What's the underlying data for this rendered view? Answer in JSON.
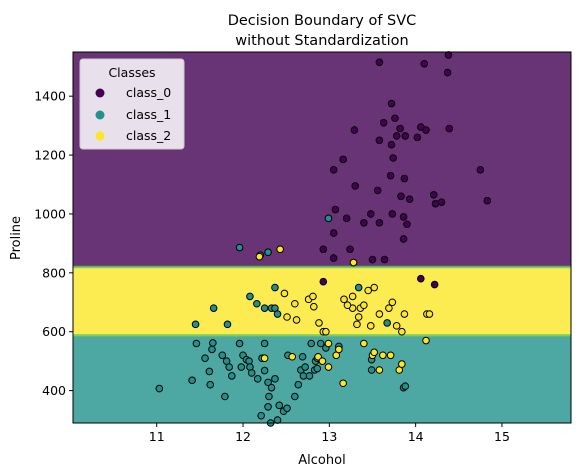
{
  "chart_data": {
    "type": "scatter",
    "title": [
      "Decision Boundary of SVC",
      "without Standardization"
    ],
    "xlabel": "Alcohol",
    "ylabel": "Proline",
    "xlim": [
      10.03,
      15.8
    ],
    "ylim": [
      290,
      1550
    ],
    "xticks": [
      11,
      12,
      13,
      14,
      15
    ],
    "yticks": [
      400,
      600,
      800,
      1000,
      1200,
      1400
    ],
    "grid": false,
    "legend": {
      "title": "Classes",
      "placement": "top-left"
    },
    "regions": [
      {
        "class": "class_1",
        "from": 290,
        "to": 588,
        "color": "#21918c"
      },
      {
        "class": "class_2",
        "from": 588,
        "to": 820,
        "color": "#fde725"
      },
      {
        "class": "class_0",
        "from": 820,
        "to": 1550,
        "color": "#440154"
      }
    ],
    "series": [
      {
        "name": "class_0",
        "color": "#440154",
        "points": [
          [
            14.38,
            1540
          ],
          [
            13.58,
            1515
          ],
          [
            14.1,
            1510
          ],
          [
            14.37,
            1480
          ],
          [
            13.72,
            1375
          ],
          [
            13.76,
            1325
          ],
          [
            13.63,
            1310
          ],
          [
            13.82,
            1290
          ],
          [
            14.06,
            1295
          ],
          [
            14.39,
            1290
          ],
          [
            13.29,
            1285
          ],
          [
            14.12,
            1285
          ],
          [
            13.78,
            1265
          ],
          [
            13.88,
            1265
          ],
          [
            14.02,
            1260
          ],
          [
            13.58,
            1250
          ],
          [
            13.72,
            1235
          ],
          [
            13.74,
            1190
          ],
          [
            13.16,
            1185
          ],
          [
            13.05,
            1150
          ],
          [
            14.75,
            1150
          ],
          [
            13.71,
            1130
          ],
          [
            13.87,
            1120
          ],
          [
            13.3,
            1095
          ],
          [
            13.56,
            1080
          ],
          [
            13.83,
            1060
          ],
          [
            14.21,
            1065
          ],
          [
            13.93,
            1050
          ],
          [
            14.3,
            1040
          ],
          [
            14.23,
            1035
          ],
          [
            14.83,
            1045
          ],
          [
            13.07,
            1015
          ],
          [
            13.48,
            1000
          ],
          [
            13.2,
            985
          ],
          [
            13.4,
            970
          ],
          [
            13.58,
            970
          ],
          [
            13.86,
            990
          ],
          [
            13.73,
            1000
          ],
          [
            13.9,
            965
          ],
          [
            13.05,
            935
          ],
          [
            13.86,
            915
          ],
          [
            12.93,
            880
          ],
          [
            13.05,
            850
          ],
          [
            13.24,
            880
          ],
          [
            13.5,
            845
          ],
          [
            13.64,
            845
          ],
          [
            12.93,
            770
          ],
          [
            14.06,
            780
          ],
          [
            14.22,
            760
          ]
        ]
      },
      {
        "name": "class_1",
        "color": "#21918c",
        "points": [
          [
            12.99,
            985
          ],
          [
            11.96,
            886
          ],
          [
            12.2,
            860
          ],
          [
            12.29,
            870
          ],
          [
            13.34,
            750
          ],
          [
            12.37,
            750
          ],
          [
            11.66,
            680
          ],
          [
            12.08,
            720
          ],
          [
            12.33,
            680
          ],
          [
            12.37,
            680
          ],
          [
            12.4,
            660
          ],
          [
            13.67,
            630
          ],
          [
            12.25,
            680
          ],
          [
            11.45,
            625
          ],
          [
            11.82,
            625
          ],
          [
            12.16,
            695
          ],
          [
            11.46,
            560
          ],
          [
            11.61,
            465
          ],
          [
            11.41,
            435
          ],
          [
            11.62,
            420
          ],
          [
            11.03,
            407
          ],
          [
            11.56,
            510
          ],
          [
            11.64,
            540
          ],
          [
            11.65,
            562
          ],
          [
            11.76,
            520
          ],
          [
            11.81,
            500
          ],
          [
            11.84,
            480
          ],
          [
            11.87,
            450
          ],
          [
            11.79,
            380
          ],
          [
            11.96,
            560
          ],
          [
            12.0,
            520
          ],
          [
            12.04,
            505
          ],
          [
            12.07,
            500
          ],
          [
            12.08,
            480
          ],
          [
            12.1,
            460
          ],
          [
            12.17,
            440
          ],
          [
            12.22,
            510
          ],
          [
            12.25,
            468
          ],
          [
            12.29,
            428
          ],
          [
            12.3,
            380
          ],
          [
            12.33,
            410
          ],
          [
            12.37,
            440
          ],
          [
            12.42,
            350
          ],
          [
            12.47,
            330
          ],
          [
            12.51,
            340
          ],
          [
            12.6,
            380
          ],
          [
            12.64,
            420
          ],
          [
            12.67,
            470
          ],
          [
            12.7,
            450
          ],
          [
            12.72,
            480
          ],
          [
            12.77,
            450
          ],
          [
            12.83,
            470
          ],
          [
            12.84,
            500
          ],
          [
            12.86,
            510
          ],
          [
            12.9,
            560
          ],
          [
            12.96,
            545
          ],
          [
            12.21,
            315
          ],
          [
            12.29,
            345
          ],
          [
            12.32,
            290
          ],
          [
            12.4,
            300
          ],
          [
            13.49,
            505
          ],
          [
            13.49,
            470
          ],
          [
            12.25,
            560
          ],
          [
            12.52,
            520
          ],
          [
            12.69,
            515
          ],
          [
            12.79,
            560
          ],
          [
            13.11,
            550
          ],
          [
            11.98,
            480
          ],
          [
            13.86,
            410
          ],
          [
            13.88,
            415
          ],
          [
            12.86,
            475
          ]
        ]
      },
      {
        "name": "class_2",
        "color": "#fde725",
        "points": [
          [
            12.43,
            880
          ],
          [
            12.19,
            855
          ],
          [
            13.28,
            835
          ],
          [
            12.48,
            730
          ],
          [
            12.6,
            695
          ],
          [
            12.76,
            710
          ],
          [
            12.81,
            720
          ],
          [
            12.82,
            685
          ],
          [
            12.51,
            650
          ],
          [
            12.62,
            640
          ],
          [
            12.88,
            630
          ],
          [
            12.93,
            600
          ],
          [
            13.17,
            710
          ],
          [
            13.27,
            720
          ],
          [
            13.32,
            625
          ],
          [
            13.34,
            650
          ],
          [
            13.36,
            680
          ],
          [
            13.4,
            690
          ],
          [
            13.45,
            740
          ],
          [
            13.48,
            620
          ],
          [
            13.52,
            750
          ],
          [
            13.58,
            660
          ],
          [
            13.69,
            680
          ],
          [
            13.73,
            700
          ],
          [
            13.78,
            620
          ],
          [
            13.84,
            600
          ],
          [
            13.87,
            660
          ],
          [
            14.13,
            660
          ],
          [
            14.16,
            660
          ],
          [
            13.08,
            520
          ],
          [
            13.11,
            540
          ],
          [
            13.4,
            560
          ],
          [
            13.5,
            520
          ],
          [
            13.52,
            530
          ],
          [
            13.62,
            520
          ],
          [
            13.71,
            520
          ],
          [
            13.81,
            470
          ],
          [
            13.84,
            490
          ],
          [
            14.12,
            570
          ],
          [
            12.25,
            510
          ],
          [
            12.87,
            515
          ],
          [
            12.92,
            500
          ],
          [
            12.57,
            515
          ],
          [
            12.99,
            560
          ],
          [
            13.16,
            425
          ],
          [
            12.99,
            480
          ],
          [
            13.58,
            470
          ],
          [
            12.96,
            600
          ],
          [
            13.27,
            680
          ],
          [
            13.21,
            690
          ]
        ]
      }
    ]
  }
}
